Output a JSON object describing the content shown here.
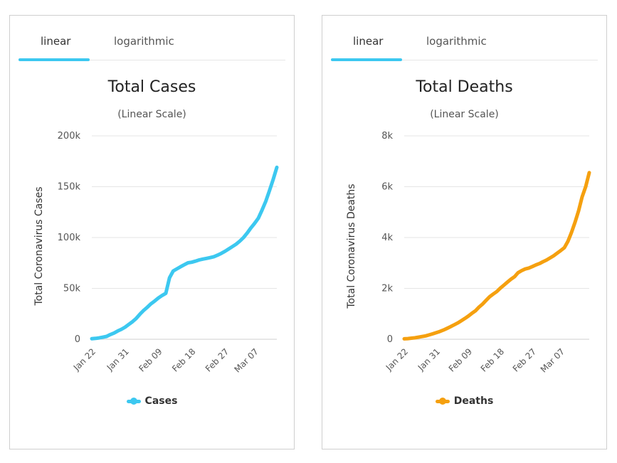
{
  "panels": [
    {
      "tabs": [
        "linear",
        "logarithmic"
      ],
      "active_tab": 0,
      "accent": "#3cc8f0",
      "chart_data": {
        "type": "line",
        "title": "Total Cases",
        "subtitle": "(Linear Scale)",
        "ylabel": "Total Coronavirus Cases",
        "ylim": [
          0,
          200000
        ],
        "yticks": [
          0,
          50000,
          100000,
          150000,
          200000
        ],
        "ytick_labels": [
          "0",
          "50k",
          "100k",
          "150k",
          "200k"
        ],
        "xtick_labels": [
          "Jan 22",
          "Jan 31",
          "Feb 09",
          "Feb 18",
          "Feb 27",
          "Mar 07"
        ],
        "xtick_index": [
          0,
          9,
          18,
          27,
          36,
          44
        ],
        "series": [
          {
            "name": "Cases",
            "color": "#3cc8f0",
            "values": [
              580,
              850,
              1300,
              2000,
              2800,
              4600,
              6100,
              8100,
              9800,
              11900,
              14600,
              17300,
              20500,
              24600,
              28300,
              31500,
              34900,
              37600,
              40600,
              43100,
              45200,
              60400,
              67100,
              69200,
              71300,
              73300,
              75200,
              75700,
              76800,
              78000,
              78800,
              79500,
              80300,
              81200,
              82700,
              84500,
              86500,
              88800,
              91100,
              93500,
              96500,
              100000,
              104500,
              109500,
              114000,
              119000,
              127000,
              135500,
              146000,
              157000,
              169000
            ]
          }
        ],
        "grid": true,
        "legend": "bottom-center"
      }
    },
    {
      "tabs": [
        "linear",
        "logarithmic"
      ],
      "active_tab": 0,
      "accent": "#3cc8f0",
      "chart_data": {
        "type": "line",
        "title": "Total Deaths",
        "subtitle": "(Linear Scale)",
        "ylabel": "Total Coronavirus Deaths",
        "ylim": [
          0,
          8000
        ],
        "yticks": [
          0,
          2000,
          4000,
          6000,
          8000
        ],
        "ytick_labels": [
          "0",
          "2k",
          "4k",
          "6k",
          "8k"
        ],
        "xtick_labels": [
          "Jan 22",
          "Jan 31",
          "Feb 09",
          "Feb 18",
          "Feb 27",
          "Mar 07"
        ],
        "xtick_index": [
          0,
          9,
          18,
          27,
          36,
          44
        ],
        "series": [
          {
            "name": "Deaths",
            "color": "#f5a00f",
            "values": [
              17,
              25,
              41,
              56,
              80,
              106,
              132,
              170,
              213,
              259,
              304,
              362,
              426,
              492,
              565,
              638,
              724,
              813,
              910,
              1018,
              1115,
              1261,
              1383,
              1526,
              1669,
              1775,
              1873,
              2009,
              2126,
              2247,
              2360,
              2460,
              2618,
              2699,
              2763,
              2800,
              2858,
              2923,
              2977,
              3050,
              3117,
              3200,
              3285,
              3387,
              3490,
              3600,
              3850,
              4200,
              4600,
              5050,
              5600,
              6000,
              6550
            ]
          }
        ],
        "grid": true,
        "legend": "bottom-center"
      }
    }
  ]
}
